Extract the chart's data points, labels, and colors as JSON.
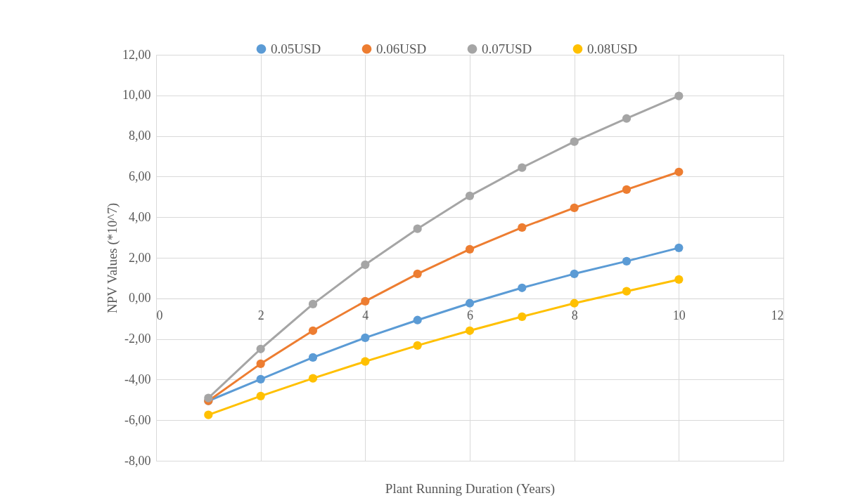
{
  "chart_data": {
    "type": "line",
    "xlabel": "Plant Running Duration (Years)",
    "ylabel": "NPV Values (*10^7)",
    "x": [
      1,
      2,
      3,
      4,
      5,
      6,
      7,
      8,
      9,
      10
    ],
    "series": [
      {
        "name": "0.05USD",
        "color": "#5b9bd5",
        "values": [
          -5.05,
          -3.98,
          -2.91,
          -1.94,
          -1.07,
          -0.24,
          0.52,
          1.21,
          1.83,
          2.49
        ]
      },
      {
        "name": "0.06USD",
        "color": "#ed7d31",
        "values": [
          -5.05,
          -3.22,
          -1.59,
          -0.14,
          1.21,
          2.42,
          3.49,
          4.46,
          5.36,
          6.23
        ]
      },
      {
        "name": "0.07USD",
        "color": "#a5a5a5",
        "values": [
          -4.91,
          -2.49,
          -0.28,
          1.66,
          3.43,
          5.05,
          6.44,
          7.72,
          8.86,
          9.97
        ]
      },
      {
        "name": "0.08USD",
        "color": "#ffc000",
        "values": [
          -5.74,
          -4.81,
          -3.94,
          -3.11,
          -2.32,
          -1.59,
          -0.9,
          -0.24,
          0.35,
          0.93
        ]
      }
    ],
    "xlim": [
      0,
      12
    ],
    "xticks": [
      0,
      2,
      4,
      6,
      8,
      10,
      12
    ],
    "ylim": [
      -8,
      12
    ],
    "yticks": [
      {
        "value": -8,
        "label": "-8,00"
      },
      {
        "value": -6,
        "label": "-6,00"
      },
      {
        "value": -4,
        "label": "-4,00"
      },
      {
        "value": -2,
        "label": "-2,00"
      },
      {
        "value": 0,
        "label": "0,00"
      },
      {
        "value": 2,
        "label": "2,00"
      },
      {
        "value": 4,
        "label": "4,00"
      },
      {
        "value": 6,
        "label": "6,00"
      },
      {
        "value": 8,
        "label": "8,00"
      },
      {
        "value": 10,
        "label": "10,00"
      },
      {
        "value": 12,
        "label": "12,00"
      }
    ],
    "grid": true,
    "legend": "top",
    "marker": "circle",
    "line_style": "solid"
  }
}
